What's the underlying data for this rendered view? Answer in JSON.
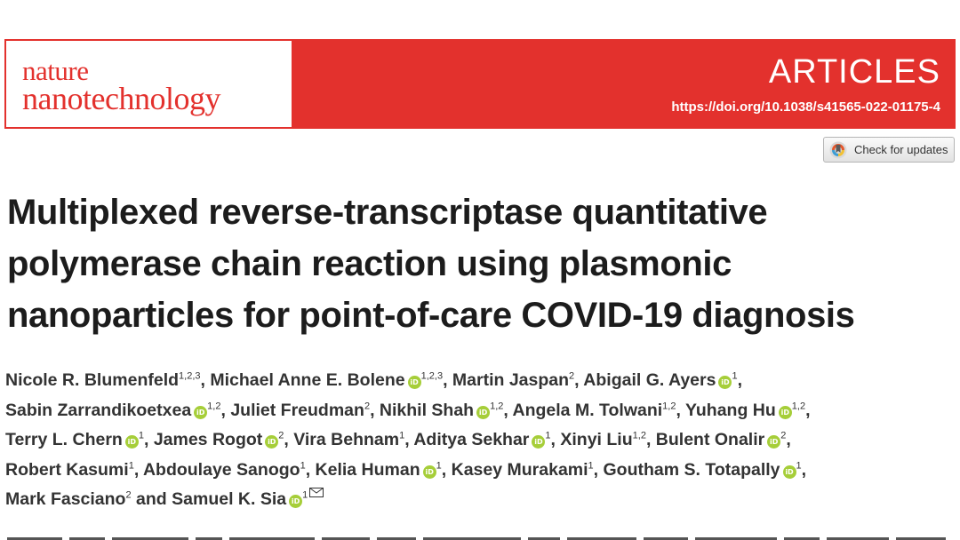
{
  "journal": {
    "name_line1": "nature",
    "name_line2": "nanotechnology",
    "section": "ARTICLES",
    "doi": "https://doi.org/10.1038/s41565-022-01175-4",
    "brand_color": "#e3312d"
  },
  "check_updates": {
    "label": "Check for updates",
    "icon": "crossmark-icon"
  },
  "title_lines": [
    "Multiplexed reverse-transcriptase quantitative",
    "polymerase chain reaction using plasmonic",
    "nanoparticles for point-of-care COVID-19 diagnosis"
  ],
  "orcid_text": "iD",
  "author_lines": [
    [
      {
        "name": "Nicole R. Blumenfeld",
        "aff": "1,2,3",
        "orcid": false,
        "sep": ", "
      },
      {
        "name": "Michael Anne E. Bolene",
        "aff": "1,2,3",
        "orcid": true,
        "sep": ", "
      },
      {
        "name": "Martin Jaspan",
        "aff": "2",
        "orcid": false,
        "sep": ", "
      },
      {
        "name": "Abigail G. Ayers",
        "aff": "1",
        "orcid": true,
        "sep": ","
      }
    ],
    [
      {
        "name": "Sabin Zarrandikoetxea",
        "aff": "1,2",
        "orcid": true,
        "sep": ", "
      },
      {
        "name": "Juliet Freudman",
        "aff": "2",
        "orcid": false,
        "sep": ", "
      },
      {
        "name": "Nikhil Shah",
        "aff": "1,2",
        "orcid": true,
        "sep": ", "
      },
      {
        "name": "Angela M. Tolwani",
        "aff": "1,2",
        "orcid": false,
        "sep": ", "
      },
      {
        "name": "Yuhang Hu",
        "aff": "1,2",
        "orcid": true,
        "sep": ","
      }
    ],
    [
      {
        "name": "Terry L. Chern",
        "aff": "1",
        "orcid": true,
        "sep": ", "
      },
      {
        "name": "James Rogot",
        "aff": "2",
        "orcid": true,
        "sep": ", "
      },
      {
        "name": "Vira Behnam",
        "aff": "1",
        "orcid": false,
        "sep": ", "
      },
      {
        "name": "Aditya Sekhar",
        "aff": "1",
        "orcid": true,
        "sep": ", "
      },
      {
        "name": "Xinyi Liu",
        "aff": "1,2",
        "orcid": false,
        "sep": ", "
      },
      {
        "name": "Bulent Onalir",
        "aff": "2",
        "orcid": true,
        "sep": ","
      }
    ],
    [
      {
        "name": "Robert Kasumi",
        "aff": "1",
        "orcid": false,
        "sep": ", "
      },
      {
        "name": "Abdoulaye Sanogo",
        "aff": "1",
        "orcid": false,
        "sep": ", "
      },
      {
        "name": "Kelia Human",
        "aff": "1",
        "orcid": true,
        "sep": ", "
      },
      {
        "name": "Kasey Murakami",
        "aff": "1",
        "orcid": false,
        "sep": ", "
      },
      {
        "name": "Goutham S. Totapally",
        "aff": "1",
        "orcid": true,
        "sep": ","
      }
    ],
    [
      {
        "name": "Mark Fasciano",
        "aff": "2",
        "orcid": false,
        "sep": " and "
      },
      {
        "name": "Samuel K. Sia",
        "aff": "1",
        "orcid": true,
        "sep": "",
        "corresponding": true
      }
    ]
  ]
}
